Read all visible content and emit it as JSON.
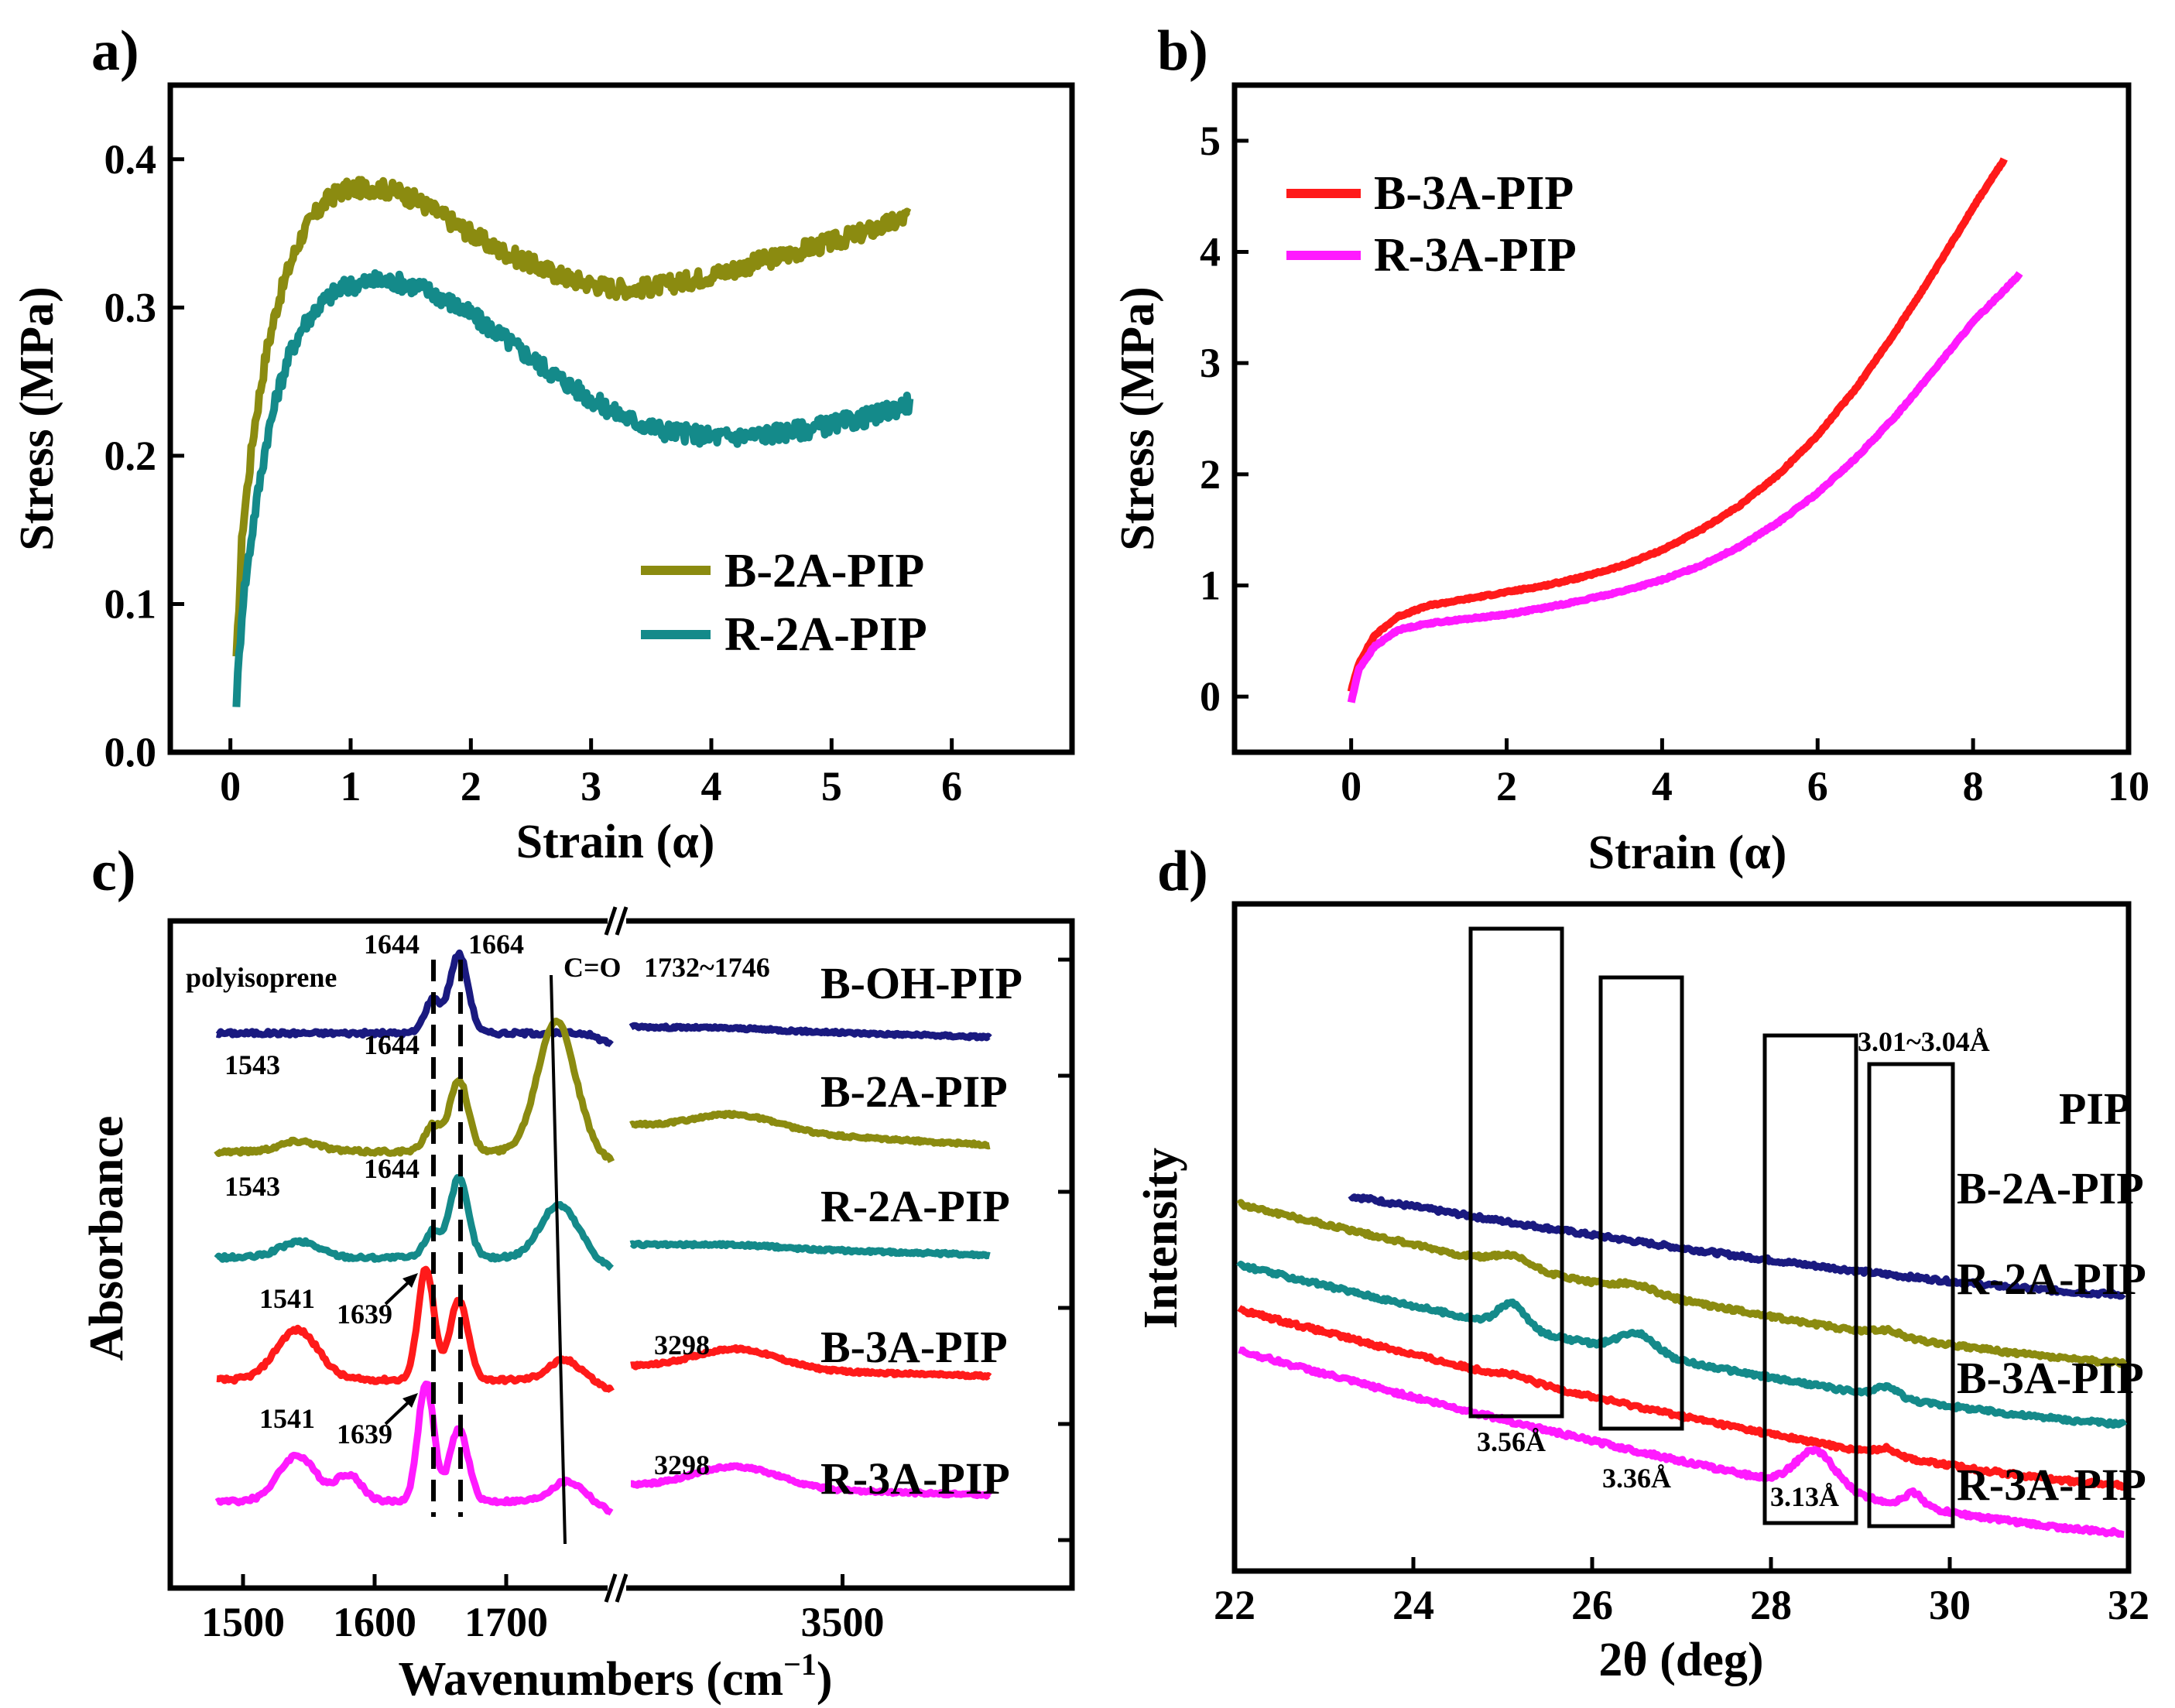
{
  "chart_data": [
    {
      "panel": "a)",
      "type": "line",
      "xlabel": "Strain (α)",
      "ylabel": "Stress (MPa)",
      "xlim": [
        -0.5,
        7
      ],
      "ylim": [
        0,
        0.45
      ],
      "xticks": [
        "0",
        "1",
        "2",
        "3",
        "4",
        "5",
        "6"
      ],
      "yticks": [
        "0.0",
        "0.1",
        "0.2",
        "0.3",
        "0.4"
      ],
      "legend_position": "bottom-right",
      "series": [
        {
          "name": "B-2A-PIP",
          "color": "#8b8b10",
          "x": [
            0.05,
            0.1,
            0.2,
            0.3,
            0.4,
            0.5,
            0.6,
            0.7,
            0.8,
            0.9,
            1.0,
            1.2,
            1.4,
            1.6,
            1.8,
            2.0,
            2.2,
            2.4,
            2.6,
            2.8,
            3.0,
            3.2,
            3.4,
            3.6,
            3.8,
            4.0,
            4.2,
            4.4,
            4.6,
            4.8,
            5.0,
            5.2,
            5.4,
            5.65
          ],
          "y": [
            0.06,
            0.15,
            0.22,
            0.27,
            0.305,
            0.33,
            0.35,
            0.362,
            0.372,
            0.378,
            0.38,
            0.381,
            0.378,
            0.37,
            0.36,
            0.35,
            0.34,
            0.333,
            0.326,
            0.32,
            0.316,
            0.313,
            0.313,
            0.315,
            0.318,
            0.322,
            0.326,
            0.331,
            0.335,
            0.34,
            0.344,
            0.349,
            0.354,
            0.362
          ]
        },
        {
          "name": "R-2A-PIP",
          "color": "#148a8a",
          "x": [
            0.05,
            0.1,
            0.2,
            0.3,
            0.4,
            0.5,
            0.6,
            0.7,
            0.8,
            0.9,
            1.0,
            1.2,
            1.4,
            1.6,
            1.8,
            2.0,
            2.2,
            2.4,
            2.6,
            2.8,
            3.0,
            3.2,
            3.4,
            3.6,
            3.8,
            4.0,
            4.2,
            4.4,
            4.6,
            4.8,
            5.0,
            5.2,
            5.4,
            5.65
          ],
          "y": [
            0.035,
            0.1,
            0.16,
            0.21,
            0.245,
            0.27,
            0.287,
            0.298,
            0.306,
            0.312,
            0.315,
            0.318,
            0.317,
            0.313,
            0.305,
            0.295,
            0.284,
            0.272,
            0.26,
            0.249,
            0.238,
            0.229,
            0.222,
            0.217,
            0.215,
            0.213,
            0.213,
            0.214,
            0.216,
            0.218,
            0.221,
            0.224,
            0.228,
            0.236
          ]
        }
      ]
    },
    {
      "panel": "b)",
      "type": "line",
      "xlabel": "Strain (α)",
      "ylabel": "Stress (MPa)",
      "xlim": [
        -1.5,
        10
      ],
      "ylim": [
        -0.5,
        5.5
      ],
      "xticks": [
        "0",
        "2",
        "4",
        "6",
        "8",
        "10"
      ],
      "yticks": [
        "0",
        "1",
        "2",
        "3",
        "4",
        "5"
      ],
      "legend_position": "top-left",
      "series": [
        {
          "name": "B-3A-PIP",
          "color": "#ff1a1a",
          "x": [
            0,
            0.1,
            0.3,
            0.6,
            1,
            1.5,
            2,
            2.5,
            3,
            3.5,
            4,
            4.5,
            5,
            5.5,
            6,
            6.5,
            7,
            7.5,
            8,
            8.4
          ],
          "y": [
            0.05,
            0.3,
            0.55,
            0.72,
            0.82,
            0.88,
            0.94,
            1.0,
            1.08,
            1.18,
            1.32,
            1.5,
            1.72,
            2.0,
            2.35,
            2.78,
            3.28,
            3.82,
            4.4,
            4.83
          ]
        },
        {
          "name": "R-3A-PIP",
          "color": "#ff1aff",
          "x": [
            0,
            0.1,
            0.3,
            0.6,
            1,
            1.5,
            2,
            2.5,
            3,
            3.5,
            4,
            4.5,
            5,
            5.5,
            6,
            6.5,
            7,
            7.5,
            8,
            8.6
          ],
          "y": [
            -0.05,
            0.25,
            0.45,
            0.6,
            0.66,
            0.7,
            0.74,
            0.8,
            0.87,
            0.95,
            1.05,
            1.18,
            1.35,
            1.57,
            1.83,
            2.15,
            2.52,
            2.94,
            3.37,
            3.8
          ]
        }
      ]
    },
    {
      "panel": "c)",
      "type": "line",
      "xlabel": "Wavenumbers (cm",
      "xlabel_sup": "−1",
      "xlabel_close": ")",
      "ylabel": "Absorbance",
      "xlim_left": [
        1450,
        1780
      ],
      "xlim_right": [
        3100,
        3780
      ],
      "xticks": [
        "1500",
        "1600",
        "1700",
        "3500"
      ],
      "annotations": [
        "polyisoprene",
        "1644",
        "1664",
        "C=O",
        "1732~1746",
        "1543",
        "1644",
        "1543",
        "1644",
        "1541",
        "1639",
        "3298",
        "1541",
        "1639",
        "3298"
      ],
      "series": [
        {
          "name": "B-OH-PIP",
          "color": "#1a1a80",
          "offset": 4,
          "peaks": [
            [
              1644,
              0.25,
              6
            ],
            [
              1664,
              0.6,
              7
            ]
          ],
          "tail_right": [
            0.05,
            0.02,
            -0.03
          ]
        },
        {
          "name": "B-2A-PIP",
          "color": "#8b8b10",
          "offset": 3,
          "peaks": [
            [
              1543,
              0.08,
              15
            ],
            [
              1644,
              0.2,
              6
            ],
            [
              1664,
              0.55,
              7
            ],
            [
              1738,
              1.0,
              14
            ]
          ],
          "tail_right": [
            0.2,
            0.25,
            0.05
          ]
        },
        {
          "name": "R-2A-PIP",
          "color": "#148a8a",
          "offset": 2,
          "peaks": [
            [
              1543,
              0.12,
              15
            ],
            [
              1644,
              0.2,
              6
            ],
            [
              1664,
              0.6,
              7
            ],
            [
              1740,
              0.4,
              14
            ]
          ],
          "tail_right": [
            0.1,
            0.08,
            0.02
          ]
        },
        {
          "name": "B-3A-PIP",
          "color": "#ff1a1a",
          "offset": 1,
          "peaks": [
            [
              1541,
              0.38,
              16
            ],
            [
              1639,
              0.85,
              6
            ],
            [
              1664,
              0.6,
              7
            ],
            [
              1744,
              0.15,
              12
            ]
          ],
          "tail_right": [
            0.1,
            0.22,
            0.03
          ]
        },
        {
          "name": "R-3A-PIP",
          "color": "#ff1aff",
          "offset": 0,
          "peaks": [
            [
              1541,
              0.35,
              14
            ],
            [
              1580,
              0.2,
              10
            ],
            [
              1639,
              0.9,
              6
            ],
            [
              1664,
              0.55,
              7
            ],
            [
              1746,
              0.15,
              12
            ]
          ],
          "tail_right": [
            0.12,
            0.25,
            0.05
          ]
        }
      ]
    },
    {
      "panel": "d)",
      "type": "line",
      "xlabel": "2θ (deg)",
      "ylabel": "Intensity",
      "xlim": [
        22,
        32
      ],
      "xticks": [
        "22",
        "24",
        "26",
        "28",
        "30",
        "32"
      ],
      "box_labels": [
        "3.56Å",
        "3.36Å",
        "3.13Å",
        "3.01~3.04Å"
      ],
      "series": [
        {
          "name": "PIP",
          "color": "#1a1a80",
          "start": 4.75,
          "end": 3.0,
          "peaks": []
        },
        {
          "name": "B-2A-PIP",
          "color": "#8b8b10",
          "start": 4.35,
          "end": 2.0,
          "peaks": [
            [
              25.1,
              0.15,
              0.2
            ],
            [
              26.5,
              0.1,
              0.2
            ],
            [
              29.3,
              0.08,
              0.15
            ]
          ]
        },
        {
          "name": "R-2A-PIP",
          "color": "#148a8a",
          "start": 3.45,
          "end": 1.1,
          "peaks": [
            [
              25.1,
              0.35,
              0.15
            ],
            [
              26.5,
              0.3,
              0.2
            ],
            [
              29.3,
              0.15,
              0.12
            ]
          ]
        },
        {
          "name": "B-3A-PIP",
          "color": "#ff1a1a",
          "start": 2.8,
          "end": 0.2,
          "peaks": [
            [
              25.1,
              0.05,
              0.2
            ],
            [
              29.3,
              0.1,
              0.12
            ]
          ]
        },
        {
          "name": "R-3A-PIP",
          "color": "#ff1aff",
          "start": 2.2,
          "end": -0.5,
          "peaks": [
            [
              28.5,
              0.55,
              0.22
            ],
            [
              29.6,
              0.2,
              0.1
            ]
          ]
        }
      ]
    }
  ]
}
